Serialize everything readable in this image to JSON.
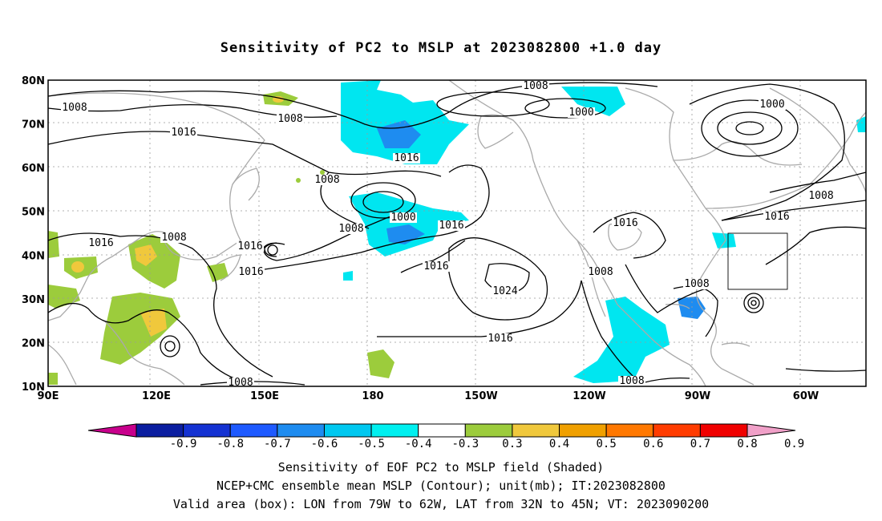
{
  "title": "Sensitivity of PC2 to MSLP at 2023082800 +1.0 day",
  "map": {
    "lat_labels": [
      "80N",
      "70N",
      "60N",
      "50N",
      "40N",
      "30N",
      "20N",
      "10N"
    ],
    "lon_labels": [
      "90E",
      "120E",
      "150E",
      "180",
      "150W",
      "120W",
      "90W",
      "60W"
    ],
    "valid_box": {
      "lon_min": -79,
      "lon_max": -62,
      "lat_min": 32,
      "lat_max": 45
    },
    "contour_labels": [
      "1008",
      "1008",
      "1016",
      "1016",
      "1008",
      "1016",
      "1008",
      "1016",
      "1016",
      "1000",
      "1008",
      "1016",
      "1016",
      "1024",
      "1008",
      "1016",
      "1008",
      "1016",
      "1008",
      "1016",
      "1008",
      "1008",
      "1000",
      "1000",
      "1008"
    ]
  },
  "colorbar": {
    "labels": [
      "-0.9",
      "-0.8",
      "-0.7",
      "-0.6",
      "-0.5",
      "-0.4",
      "-0.3",
      "0.3",
      "0.4",
      "0.5",
      "0.6",
      "0.7",
      "0.8",
      "0.9"
    ],
    "colors": [
      "#c8008c",
      "#0b1ea0",
      "#1432d2",
      "#1e5aff",
      "#1e8cf0",
      "#00c8f0",
      "#00f0f0",
      "#ffffff",
      "#9ccc3c",
      "#f0c83c",
      "#f0a000",
      "#ff7800",
      "#ff3c00",
      "#f00000",
      "#f0a0c8"
    ]
  },
  "caption": {
    "line1": "Sensitivity of EOF PC2 to MSLP field (Shaded)",
    "line2": "NCEP+CMC ensemble mean MSLP (Contour); unit(mb); IT:2023082800",
    "line3": "Valid area (box): LON from 79W to 62W, LAT from 32N to 45N; VT: 2023090200"
  },
  "colors": {
    "shade_pos": "#9ccc3c",
    "shade_pos2": "#f0c83c",
    "shade_neg": "#00e6f0",
    "shade_neg2": "#1e8cf0",
    "coast": "#aaaaaa",
    "contour": "#000000"
  }
}
